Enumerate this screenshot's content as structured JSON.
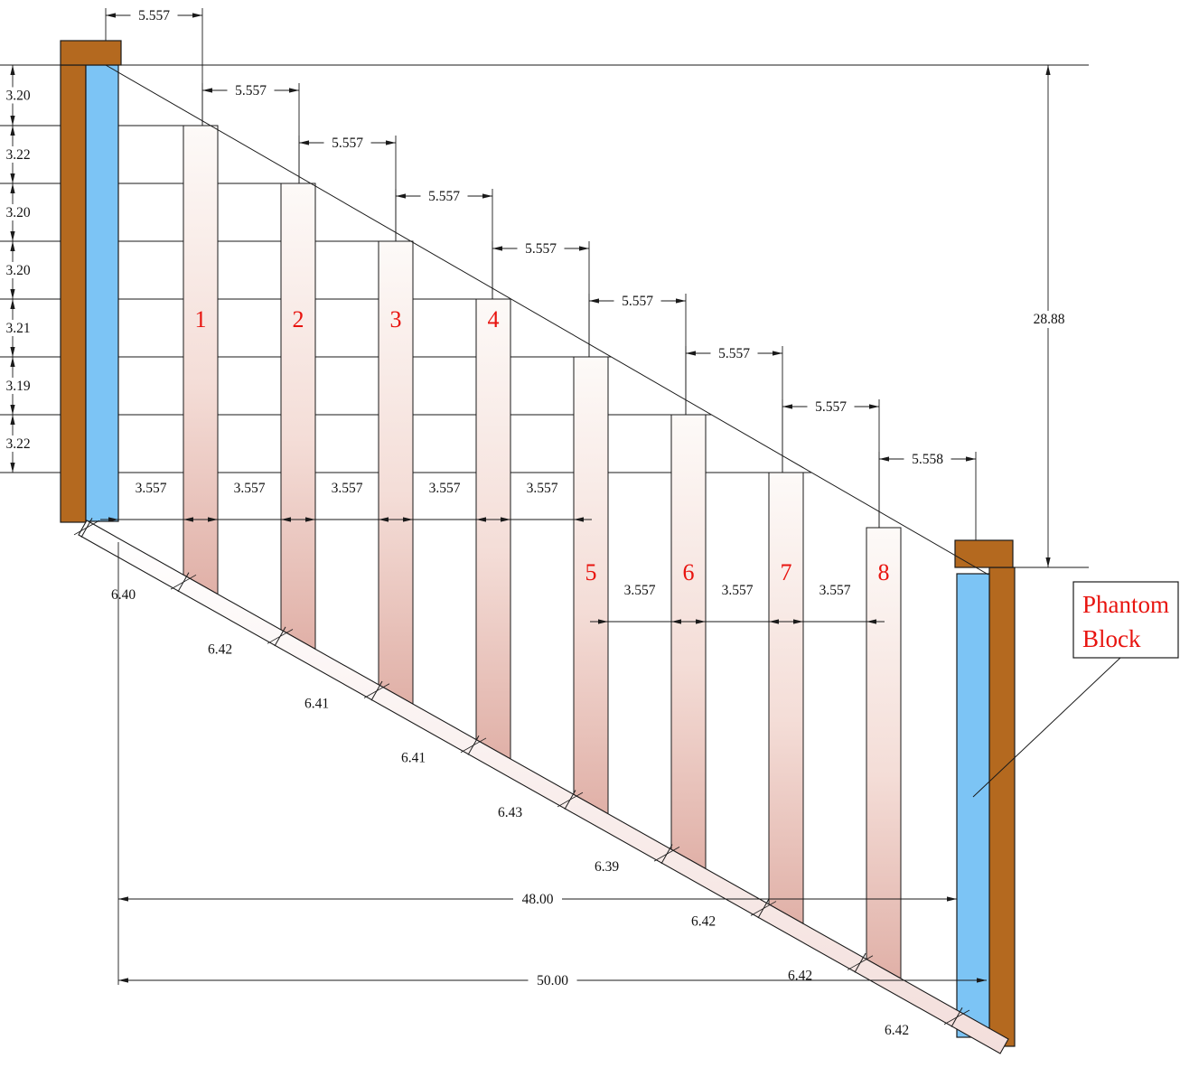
{
  "top_dims": [
    "5.557",
    "5.557",
    "5.557",
    "5.557",
    "5.557",
    "5.557",
    "5.557",
    "5.557",
    "5.558"
  ],
  "left_dims": [
    "3.20",
    "3.22",
    "3.20",
    "3.20",
    "3.21",
    "3.19",
    "3.22"
  ],
  "right_dim": "28.88",
  "gap_dims": [
    "3.557",
    "3.557",
    "3.557",
    "3.557",
    "3.557",
    "3.557",
    "3.557",
    "3.557"
  ],
  "slope_dims": [
    "6.40",
    "6.42",
    "6.41",
    "6.41",
    "6.43",
    "6.39",
    "6.42",
    "6.42",
    "6.42"
  ],
  "overall_dims": [
    "48.00",
    "50.00"
  ],
  "baluster_numbers": [
    "1",
    "2",
    "3",
    "4",
    "5",
    "6",
    "7",
    "8"
  ],
  "phantom_label": [
    "Phantom",
    "Block"
  ],
  "colors": {
    "wood": "#b4691f",
    "block": "#7cc4f5",
    "baluster_top": "#fdfaf8",
    "baluster_mid": "#f4ddd7",
    "baluster_bottom": "#e0b0a7",
    "rail": "#f3dedb",
    "red": "#e8140f",
    "line": "#1a1a1a",
    "text": "#111111"
  }
}
